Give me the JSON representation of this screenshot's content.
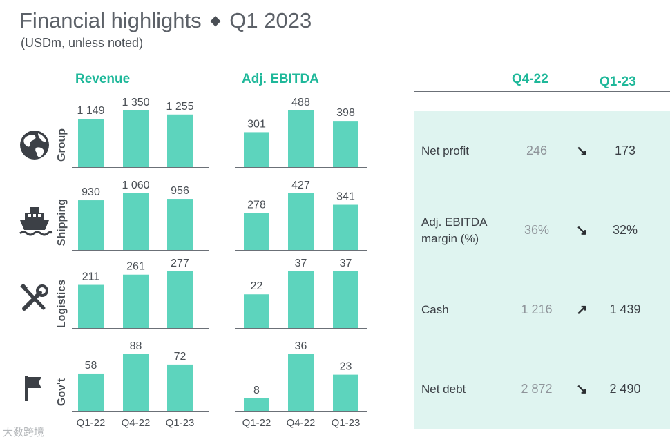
{
  "header": {
    "title_left": "Financial highlights",
    "title_sep": "◆",
    "title_right": "Q1 2023",
    "subtitle": "(USDm, unless noted)"
  },
  "columns": {
    "revenue": "Revenue",
    "ebitda": "Adj. EBITDA",
    "prev": "Q4-22",
    "cur": "Q1-23"
  },
  "segments": [
    {
      "name": "Group",
      "icon": "globe-icon"
    },
    {
      "name": "Shipping",
      "icon": "ship-icon"
    },
    {
      "name": "Logistics",
      "icon": "tools-icon"
    },
    {
      "name": "Gov't",
      "icon": "flag-icon"
    }
  ],
  "kpis": [
    {
      "label": "Net profit",
      "prev": "246",
      "dir": "down",
      "cur": "173"
    },
    {
      "label": "Adj. EBITDA margin (%)",
      "prev": "36%",
      "dir": "down",
      "cur": "32%"
    },
    {
      "label": "Cash",
      "prev": "1 216",
      "dir": "up",
      "cur": "1 439"
    },
    {
      "label": "Net debt",
      "prev": "2 872",
      "dir": "down",
      "cur": "2 490"
    }
  ],
  "watermark": "大数跨境",
  "colors": {
    "bar": "#5dd4bd",
    "accent": "#1fb89a",
    "panel": "#dff4f0"
  },
  "chart_data": {
    "type": "bar",
    "categories": [
      "Q1-22",
      "Q4-22",
      "Q1-23"
    ],
    "series": [
      {
        "name": "Revenue",
        "segment": "Group",
        "values": [
          1149,
          1350,
          1255
        ],
        "labels": [
          "1 149",
          "1 350",
          "1 255"
        ]
      },
      {
        "name": "Adj. EBITDA",
        "segment": "Group",
        "values": [
          301,
          488,
          398
        ],
        "labels": [
          "301",
          "488",
          "398"
        ]
      },
      {
        "name": "Revenue",
        "segment": "Shipping",
        "values": [
          930,
          1060,
          956
        ],
        "labels": [
          "930",
          "1 060",
          "956"
        ]
      },
      {
        "name": "Adj. EBITDA",
        "segment": "Shipping",
        "values": [
          278,
          427,
          341
        ],
        "labels": [
          "278",
          "427",
          "341"
        ]
      },
      {
        "name": "Revenue",
        "segment": "Logistics",
        "values": [
          211,
          261,
          277
        ],
        "labels": [
          "211",
          "261",
          "277"
        ]
      },
      {
        "name": "Adj. EBITDA",
        "segment": "Logistics",
        "values": [
          22,
          37,
          37
        ],
        "labels": [
          "22",
          "37",
          "37"
        ]
      },
      {
        "name": "Revenue",
        "segment": "Gov't",
        "values": [
          58,
          88,
          72
        ],
        "labels": [
          "58",
          "88",
          "72"
        ]
      },
      {
        "name": "Adj. EBITDA",
        "segment": "Gov't",
        "values": [
          8,
          36,
          23
        ],
        "labels": [
          "8",
          "36",
          "23"
        ]
      }
    ]
  }
}
